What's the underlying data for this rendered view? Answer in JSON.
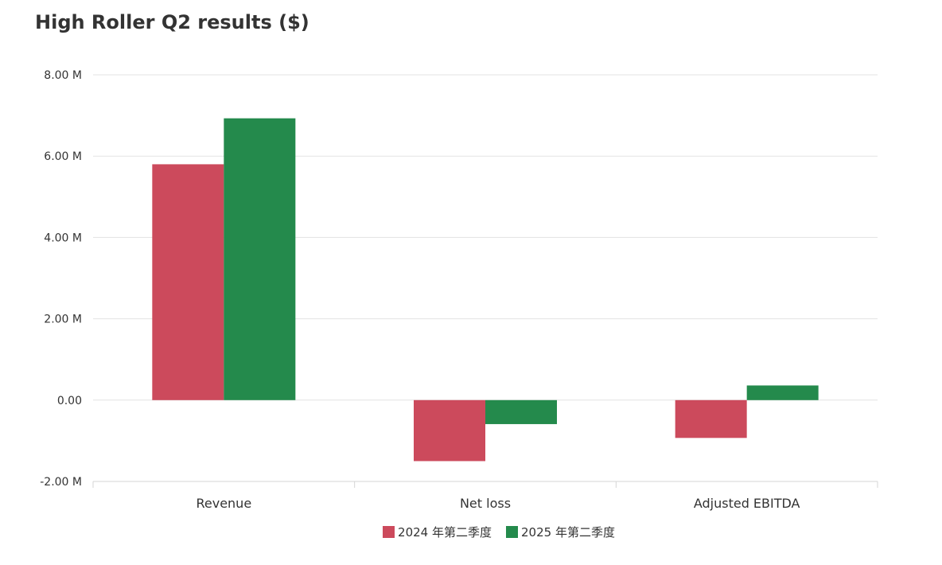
{
  "chart_data": {
    "type": "bar",
    "title": "High Roller Q2 results ($)",
    "categories": [
      "Revenue",
      "Net loss",
      "Adjusted EBITDA"
    ],
    "series": [
      {
        "name": "2024 年第二季度",
        "color": "#cc4a5c",
        "values": [
          5.8,
          -1.5,
          -0.93
        ]
      },
      {
        "name": "2025 年第二季度",
        "color": "#248a4c",
        "values": [
          6.93,
          -0.59,
          0.36
        ]
      }
    ],
    "ylim": [
      -2,
      8
    ],
    "yticks": [
      -2,
      0,
      2,
      4,
      6,
      8
    ],
    "ytick_labels": [
      "-2.00 M",
      "0.00",
      "2.00 M",
      "4.00 M",
      "6.00 M",
      "8.00 M"
    ],
    "grid": true,
    "legend": "bottom"
  }
}
